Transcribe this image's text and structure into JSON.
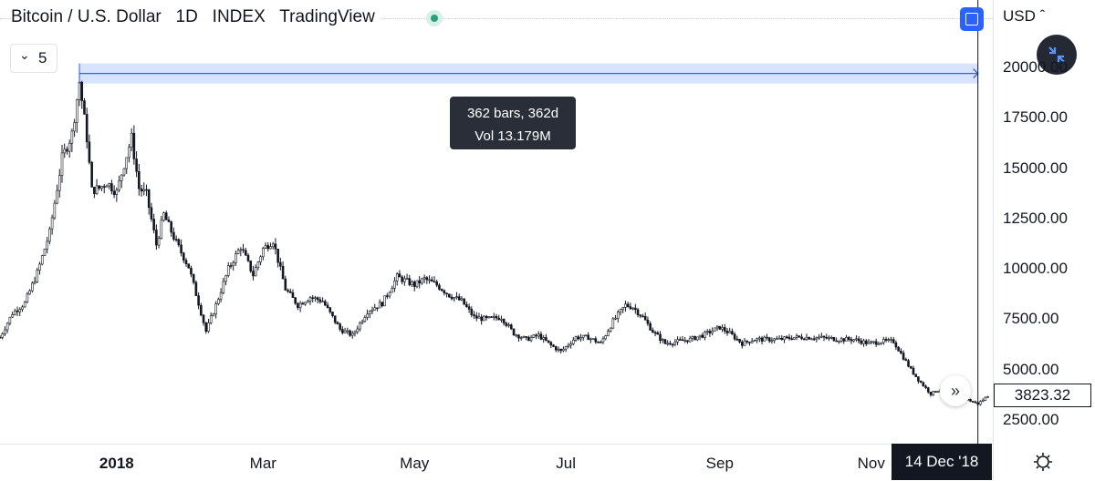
{
  "header": {
    "symbol": "Bitcoin / U.S. Dollar",
    "interval": "1D",
    "exchange": "INDEX",
    "source": "TradingView",
    "title": "Bitcoin / U.S. Dollar   1D   INDEX   TradingView"
  },
  "indicator_toggle": {
    "count": "5"
  },
  "currency": "USD",
  "crosshair_date": "14 Dec '18",
  "measure": {
    "bars_label": "362 bars, 362d",
    "vol_label": "Vol 13.179M"
  },
  "last_price": "3823.32",
  "colors": {
    "candles": "#131722",
    "measure_fill": "#2962ff",
    "accent": "#2962ff",
    "live": "#26a17a"
  },
  "chart_data": {
    "type": "line",
    "title": "Bitcoin / U.S. Dollar",
    "y_ticks": [
      "2500.00",
      "5000.00",
      "7500.00",
      "10000.00",
      "12500.00",
      "15000.00",
      "17500.00",
      "20000.00"
    ],
    "y_tick_values": [
      2500,
      5000,
      7500,
      10000,
      12500,
      15000,
      17500,
      20000
    ],
    "ylim": [
      1500,
      21400
    ],
    "x_ticks": [
      "2018",
      "Mar",
      "May",
      "Jul",
      "Sep",
      "Nov"
    ],
    "x_tick_dates": [
      "2018-01-01",
      "2018-03-01",
      "2018-05-01",
      "2018-07-01",
      "2018-09-01",
      "2018-11-01"
    ],
    "xlim": [
      "2017-11-15",
      "2018-12-20"
    ],
    "measure_range": [
      "2017-12-17",
      "2018-12-14"
    ],
    "measure_price_range": [
      19200,
      20200
    ],
    "series": [
      {
        "x": [
          "2017-11-15",
          "2017-11-20",
          "2017-11-25",
          "2017-11-30",
          "2017-12-05",
          "2017-12-10",
          "2017-12-14",
          "2017-12-17",
          "2017-12-20",
          "2017-12-22",
          "2017-12-25",
          "2017-12-28",
          "2018-01-01",
          "2018-01-04",
          "2018-01-07",
          "2018-01-10",
          "2018-01-13",
          "2018-01-17",
          "2018-01-20",
          "2018-01-25",
          "2018-01-30",
          "2018-02-03",
          "2018-02-06",
          "2018-02-10",
          "2018-02-15",
          "2018-02-20",
          "2018-02-25",
          "2018-03-01",
          "2018-03-05",
          "2018-03-10",
          "2018-03-15",
          "2018-03-20",
          "2018-03-25",
          "2018-04-01",
          "2018-04-06",
          "2018-04-12",
          "2018-04-18",
          "2018-04-24",
          "2018-05-01",
          "2018-05-05",
          "2018-05-10",
          "2018-05-15",
          "2018-05-20",
          "2018-05-25",
          "2018-05-30",
          "2018-06-05",
          "2018-06-10",
          "2018-06-15",
          "2018-06-20",
          "2018-06-25",
          "2018-06-29",
          "2018-07-05",
          "2018-07-10",
          "2018-07-15",
          "2018-07-20",
          "2018-07-25",
          "2018-07-28",
          "2018-08-01",
          "2018-08-05",
          "2018-08-10",
          "2018-08-15",
          "2018-08-20",
          "2018-08-25",
          "2018-09-01",
          "2018-09-05",
          "2018-09-10",
          "2018-09-15",
          "2018-09-20",
          "2018-09-25",
          "2018-10-01",
          "2018-10-10",
          "2018-10-20",
          "2018-10-25",
          "2018-10-31",
          "2018-11-05",
          "2018-11-10",
          "2018-11-14",
          "2018-11-17",
          "2018-11-20",
          "2018-11-25",
          "2018-11-30",
          "2018-12-05",
          "2018-12-10",
          "2018-12-14",
          "2018-12-18"
        ],
        "values": [
          6600,
          7800,
          8300,
          9800,
          11800,
          15500,
          16700,
          19300,
          16500,
          13900,
          14000,
          14300,
          13800,
          15200,
          16500,
          14000,
          13700,
          11200,
          12700,
          11300,
          10100,
          8300,
          6900,
          8200,
          10000,
          11100,
          9700,
          11000,
          11400,
          9000,
          8200,
          8600,
          8400,
          7000,
          6700,
          7900,
          8300,
          9600,
          9200,
          9500,
          9200,
          8700,
          8400,
          7600,
          7500,
          7600,
          6800,
          6500,
          6700,
          6200,
          5900,
          6600,
          6600,
          6300,
          7400,
          8200,
          8100,
          7600,
          6900,
          6300,
          6400,
          6500,
          6700,
          7100,
          6800,
          6300,
          6500,
          6500,
          6500,
          6600,
          6600,
          6500,
          6500,
          6300,
          6400,
          6400,
          5600,
          5000,
          4500,
          3800,
          4100,
          3800,
          3500,
          3300,
          3700
        ]
      }
    ]
  }
}
